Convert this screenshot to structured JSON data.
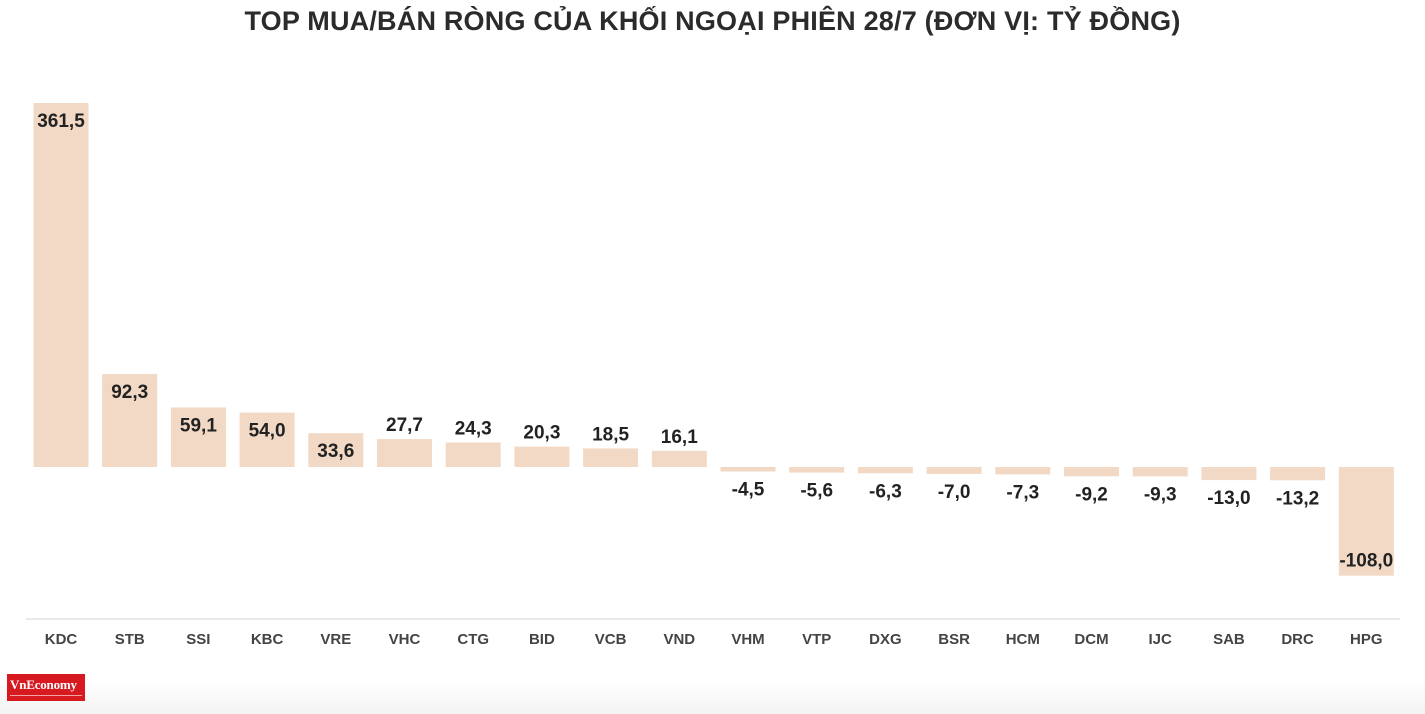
{
  "chart_data": {
    "type": "bar",
    "title": "TOP MUA/BÁN RÒNG CỦA KHỐI NGOẠI PHIÊN 28/7 (ĐƠN VỊ: TỶ ĐỒNG)",
    "categories": [
      "KDC",
      "STB",
      "SSI",
      "KBC",
      "VRE",
      "VHC",
      "CTG",
      "BID",
      "VCB",
      "VND",
      "VHM",
      "VTP",
      "DXG",
      "BSR",
      "HCM",
      "DCM",
      "IJC",
      "SAB",
      "DRC",
      "HPG"
    ],
    "values": [
      361.5,
      92.3,
      59.1,
      54.0,
      33.6,
      27.7,
      24.3,
      20.3,
      18.5,
      16.1,
      -4.5,
      -5.6,
      -6.3,
      -7.0,
      -7.3,
      -9.2,
      -9.3,
      -13.0,
      -13.2,
      -108.0
    ],
    "value_labels": [
      "361,5",
      "92,3",
      "59,1",
      "54,0",
      "33,6",
      "27,7",
      "24,3",
      "20,3",
      "18,5",
      "16,1",
      "-4,5",
      "-5,6",
      "-6,3",
      "-7,0",
      "-7,3",
      "-9,2",
      "-9,3",
      "-13,0",
      "-13,2",
      "-108,0"
    ],
    "xlabel": "",
    "ylabel": "",
    "ylim": [
      -150,
      361.5
    ],
    "grid": false,
    "legend": "none",
    "bar_color": "#f2d9c5",
    "baseline_color": "#d6d6d6"
  },
  "logo": {
    "name": "VnEconomy"
  }
}
